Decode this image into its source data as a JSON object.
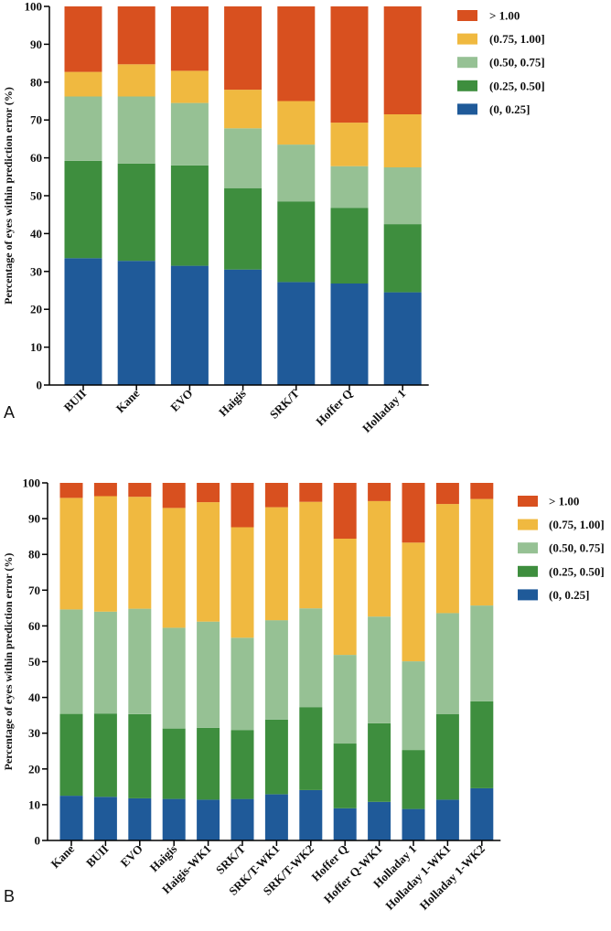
{
  "colors": {
    "c0": "#1f5a99",
    "c1": "#3e8e3e",
    "c2": "#96c194",
    "c3": "#f0b940",
    "c4": "#d8501f"
  },
  "chart_data": [
    {
      "type": "bar",
      "stacked": true,
      "panel_label": "A",
      "ylabel": "Percentage of eyes within prediction error  (%)",
      "ylim": [
        0,
        100
      ],
      "yticks": [
        0,
        10,
        20,
        30,
        40,
        50,
        60,
        70,
        80,
        90,
        100
      ],
      "categories": [
        "BUII",
        "Kane",
        "EVO",
        "Haigis",
        "SRK/T",
        "Hoffer Q",
        "Holladay 1"
      ],
      "legend_position": "top-right",
      "series": [
        {
          "name": "(0, 0.25]",
          "color_key": "c0",
          "values": [
            33.5,
            32.8,
            31.5,
            30.5,
            27.2,
            26.8,
            24.5
          ]
        },
        {
          "name": "(0.25, 0.50]",
          "color_key": "c1",
          "values": [
            25.7,
            25.7,
            26.5,
            21.5,
            21.3,
            20.0,
            18.0
          ]
        },
        {
          "name": "(0.50, 0.75]",
          "color_key": "c2",
          "values": [
            17.0,
            17.7,
            16.5,
            15.8,
            15.0,
            11.0,
            15.0
          ]
        },
        {
          "name": "(0.75, 1.00]",
          "color_key": "c3",
          "values": [
            6.5,
            8.5,
            8.5,
            10.2,
            11.5,
            11.5,
            14.0
          ]
        },
        {
          "name": "> 1.00",
          "color_key": "c4",
          "values": [
            17.3,
            15.3,
            17.0,
            22.0,
            25.0,
            30.7,
            28.5
          ]
        }
      ]
    },
    {
      "type": "bar",
      "stacked": true,
      "panel_label": "B",
      "ylabel": "Percentage of eyes within prediction error (%)",
      "ylim": [
        0,
        100
      ],
      "yticks": [
        0,
        10,
        20,
        30,
        40,
        50,
        60,
        70,
        80,
        90,
        100
      ],
      "categories": [
        "Kane",
        "BUII",
        "EVO",
        "Haigis",
        "Haigis-WK1",
        "SRK/T",
        "SRK/T-WK1",
        "SRK/T-WK2",
        "Hoffer Q",
        "Hoffer Q-WK1",
        "Holladay 1",
        "Holladay 1-WK1",
        "Holladay 1-WK2"
      ],
      "legend_position": "top-right",
      "series": [
        {
          "name": "(0, 0.25]",
          "color_key": "c0",
          "values": [
            12.5,
            12.2,
            11.8,
            11.6,
            11.4,
            11.6,
            12.9,
            14.1,
            9.0,
            10.8,
            8.8,
            11.4,
            14.6
          ]
        },
        {
          "name": "(0.25, 0.50]",
          "color_key": "c1",
          "values": [
            22.9,
            23.3,
            23.5,
            19.7,
            20.1,
            19.3,
            20.9,
            23.2,
            18.1,
            22.0,
            16.5,
            23.9,
            24.3
          ]
        },
        {
          "name": "(0.50, 0.75]",
          "color_key": "c2",
          "values": [
            29.2,
            28.5,
            29.5,
            28.2,
            29.7,
            25.8,
            27.8,
            27.6,
            24.8,
            29.8,
            24.8,
            28.3,
            26.8
          ]
        },
        {
          "name": "(0.75, 1.00]",
          "color_key": "c3",
          "values": [
            31.2,
            32.3,
            31.3,
            33.5,
            33.4,
            30.9,
            31.6,
            29.8,
            32.5,
            32.3,
            33.2,
            30.5,
            29.8
          ]
        },
        {
          "name": "> 1.00",
          "color_key": "c4",
          "values": [
            4.2,
            3.7,
            3.9,
            7.0,
            5.4,
            12.4,
            6.8,
            5.3,
            15.6,
            5.1,
            16.7,
            5.9,
            4.5
          ]
        }
      ]
    }
  ]
}
